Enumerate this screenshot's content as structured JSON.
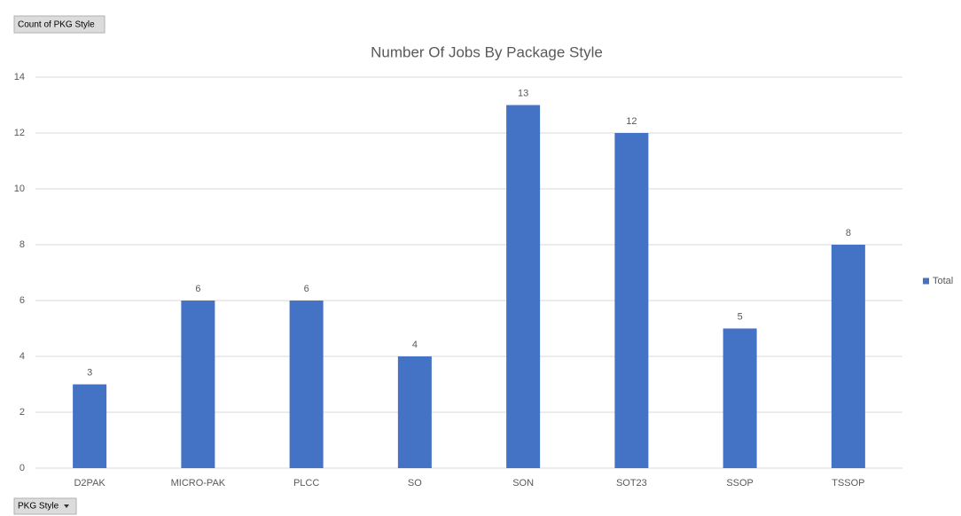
{
  "pivot": {
    "value_field": "Count of PKG Style",
    "row_field": "PKG Style"
  },
  "chart_data": {
    "type": "bar",
    "title": "Number Of Jobs By Package Style",
    "categories": [
      "D2PAK",
      "MICRO-PAK",
      "PLCC",
      "SO",
      "SON",
      "SOT23",
      "SSOP",
      "TSSOP"
    ],
    "series": [
      {
        "name": "Total",
        "color": "#4472c4",
        "values": [
          3,
          6,
          6,
          4,
          13,
          12,
          5,
          8
        ]
      }
    ],
    "ylim": [
      0,
      14
    ],
    "yticks": [
      0,
      2,
      4,
      6,
      8,
      10,
      12,
      14
    ],
    "grid": true,
    "legend": "right",
    "data_labels": true
  }
}
